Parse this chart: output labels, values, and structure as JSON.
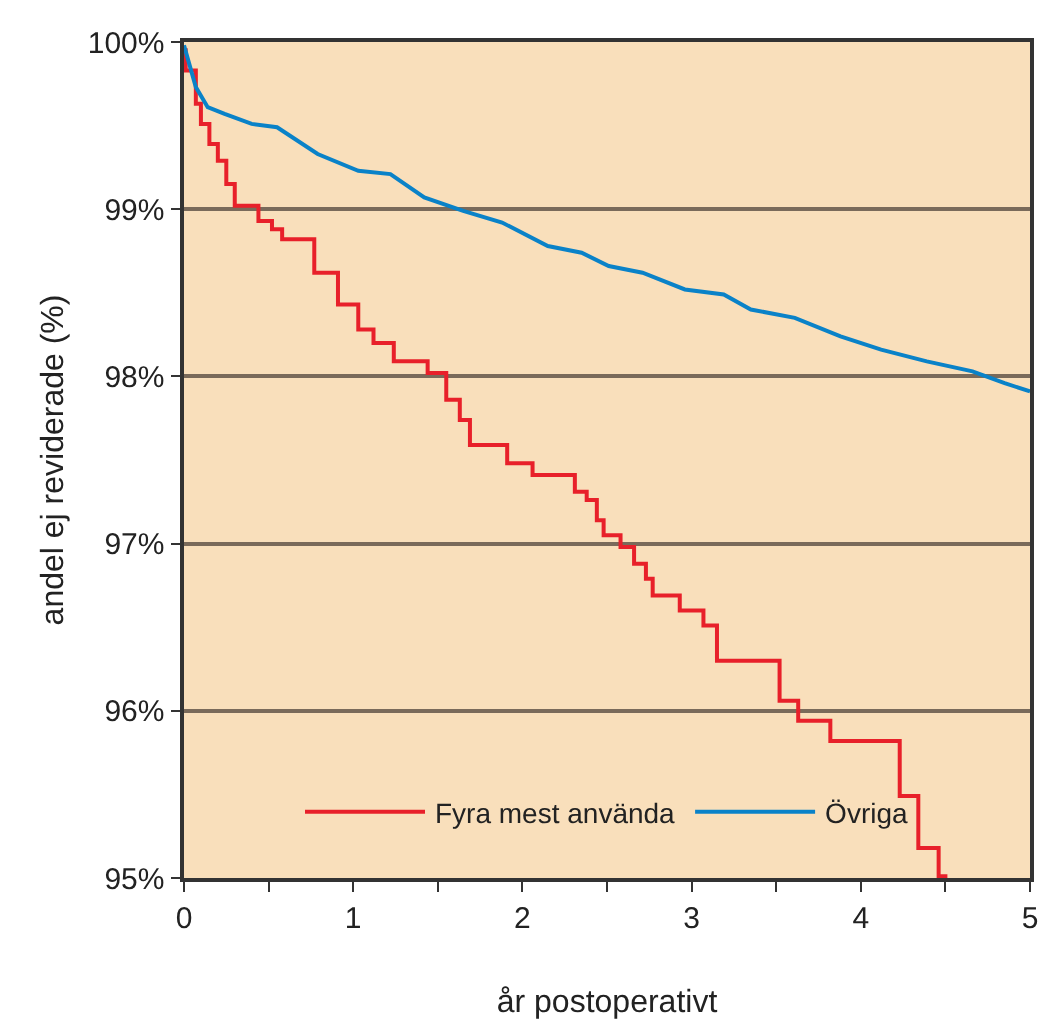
{
  "chart_data": {
    "type": "step",
    "xlabel": "år postoperativt",
    "ylabel": "andel ej reviderade (%)",
    "xlim": [
      0,
      5
    ],
    "xticks": [
      0,
      {
        "value": 0.5,
        "label": null
      },
      1,
      {
        "value": 1.5,
        "label": null
      },
      2,
      {
        "value": 2.5,
        "label": null
      },
      3,
      {
        "value": 3.5,
        "label": null
      },
      4,
      {
        "value": 4.5,
        "label": null
      },
      5
    ],
    "ylim": [
      95,
      100
    ],
    "yticks": [
      {
        "value": 95,
        "label": "95%"
      },
      {
        "value": 96,
        "label": "96%"
      },
      {
        "value": 97,
        "label": "97%"
      },
      {
        "value": 98,
        "label": "98%"
      },
      {
        "value": 99,
        "label": "99%"
      },
      {
        "value": 100,
        "label": "100%"
      }
    ],
    "grid": "y",
    "legend": "bottom",
    "line_style": "solid",
    "marker": "none",
    "series": [
      {
        "name": "Fyra mest använda",
        "color": "#e8202a",
        "x": [
          0,
          0.01,
          0.07,
          0.1,
          0.15,
          0.2,
          0.25,
          0.3,
          0.44,
          0.52,
          0.58,
          0.77,
          0.91,
          1.03,
          1.12,
          1.24,
          1.44,
          1.55,
          1.63,
          1.69,
          1.91,
          2.06,
          2.31,
          2.38,
          2.44,
          2.48,
          2.58,
          2.66,
          2.73,
          2.77,
          2.93,
          3.07,
          3.15,
          3.52,
          3.63,
          3.82,
          4.23,
          4.34,
          4.46,
          4.5
        ],
        "values": [
          99.95,
          99.83,
          99.63,
          99.51,
          99.39,
          99.29,
          99.15,
          99.02,
          98.93,
          98.88,
          98.82,
          98.62,
          98.43,
          98.28,
          98.2,
          98.09,
          98.02,
          97.86,
          97.74,
          97.59,
          97.48,
          97.41,
          97.31,
          97.26,
          97.14,
          97.05,
          96.98,
          96.88,
          96.79,
          96.69,
          96.6,
          96.51,
          96.3,
          96.06,
          95.94,
          95.82,
          95.49,
          95.18,
          95.01,
          95.0
        ]
      },
      {
        "name": "Övriga",
        "type": "line",
        "color": "#0a82c8",
        "x": [
          0,
          0.07,
          0.14,
          0.24,
          0.4,
          0.55,
          0.79,
          1.03,
          1.22,
          1.42,
          1.65,
          1.88,
          2.15,
          2.35,
          2.51,
          2.71,
          2.96,
          3.19,
          3.35,
          3.61,
          3.88,
          4.12,
          4.39,
          4.66,
          4.85,
          5.0
        ],
        "values": [
          99.98,
          99.73,
          99.61,
          99.57,
          99.51,
          99.49,
          99.33,
          99.23,
          99.21,
          99.07,
          98.99,
          98.92,
          98.78,
          98.74,
          98.66,
          98.62,
          98.52,
          98.49,
          98.4,
          98.35,
          98.24,
          98.16,
          98.09,
          98.03,
          97.96,
          97.91
        ]
      }
    ]
  }
}
